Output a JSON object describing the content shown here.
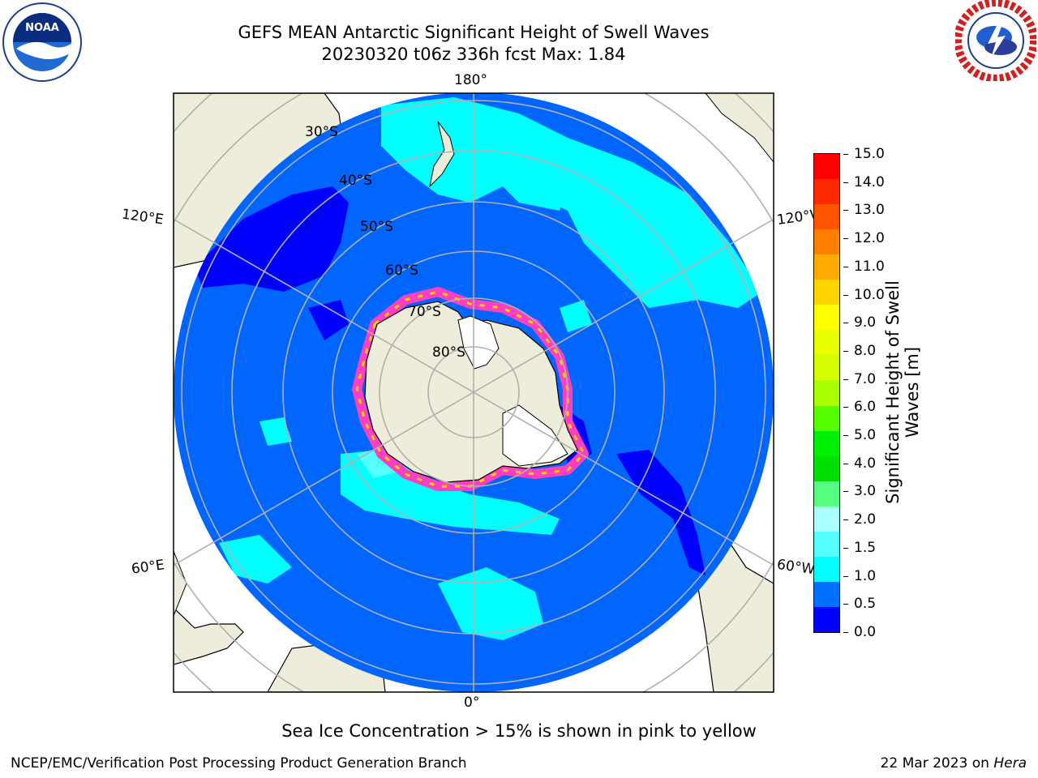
{
  "header": {
    "title_line1": "GEFS MEAN Antarctic Significant Height of Swell Waves",
    "title_line2": "20230320 t06z 336h fcst   Max: 1.84"
  },
  "logos": {
    "left": "NOAA",
    "right": "NATIONAL WEATHER SERVICE"
  },
  "map": {
    "longitude_labels": {
      "top": "180°",
      "bottom": "0°",
      "upper_left": "120°E",
      "upper_right": "120°W",
      "lower_left": "60°E",
      "lower_right": "60°W"
    },
    "latitude_labels": [
      "30°S",
      "40°S",
      "50°S",
      "60°S",
      "70°S",
      "80°S"
    ],
    "colors": {
      "ocean_low": "#0066ff",
      "ocean_very_low": "#0000ff",
      "swell_mid": "#00ffff",
      "land": "#eeecda",
      "sea_ice_pink": "#ff3fbf",
      "sea_ice_yellow": "#ffd200",
      "grid": "#b0b0b0"
    }
  },
  "colorbar": {
    "label": "Significant Height of Swell Waves [m]",
    "ticks": [
      "15.0",
      "14.0",
      "13.0",
      "12.0",
      "11.0",
      "10.0",
      "9.0",
      "8.0",
      "7.0",
      "6.0",
      "5.0",
      "4.0",
      "3.0",
      "2.0",
      "1.5",
      "1.0",
      "0.5",
      "0.0"
    ],
    "colors_top_to_bottom": [
      "#ff0000",
      "#ff2a00",
      "#ff5500",
      "#ff8000",
      "#ffaa00",
      "#ffd500",
      "#ffff00",
      "#eaff00",
      "#d5ff00",
      "#aaff00",
      "#55ff00",
      "#00ee00",
      "#00e000",
      "#55ff80",
      "#aaffff",
      "#55ffff",
      "#00ffff",
      "#0070ff",
      "#0000ff"
    ]
  },
  "footer": {
    "note": "Sea Ice Concentration > 15% is shown in pink to yellow",
    "left_credit": "NCEP/EMC/Verification Post Processing Product Generation Branch",
    "date_text": "22 Mar 2023 on ",
    "machine": "Hera"
  }
}
